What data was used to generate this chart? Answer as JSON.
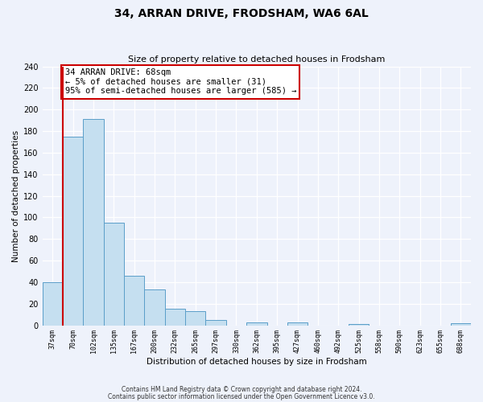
{
  "title": "34, ARRAN DRIVE, FRODSHAM, WA6 6AL",
  "subtitle": "Size of property relative to detached houses in Frodsham",
  "xlabel": "Distribution of detached houses by size in Frodsham",
  "ylabel": "Number of detached properties",
  "bin_labels": [
    "37sqm",
    "70sqm",
    "102sqm",
    "135sqm",
    "167sqm",
    "200sqm",
    "232sqm",
    "265sqm",
    "297sqm",
    "330sqm",
    "362sqm",
    "395sqm",
    "427sqm",
    "460sqm",
    "492sqm",
    "525sqm",
    "558sqm",
    "590sqm",
    "623sqm",
    "655sqm",
    "688sqm"
  ],
  "bar_heights": [
    40,
    175,
    191,
    95,
    46,
    33,
    15,
    13,
    5,
    0,
    3,
    0,
    3,
    0,
    0,
    1,
    0,
    0,
    0,
    0,
    2
  ],
  "bar_color": "#c5dff0",
  "bar_edge_color": "#5b9ec9",
  "vline_x": 0.5,
  "vline_color": "#cc0000",
  "annotation_text": "34 ARRAN DRIVE: 68sqm\n← 5% of detached houses are smaller (31)\n95% of semi-detached houses are larger (585) →",
  "annotation_box_color": "#ffffff",
  "annotation_box_edge": "#cc0000",
  "ylim": [
    0,
    240
  ],
  "yticks": [
    0,
    20,
    40,
    60,
    80,
    100,
    120,
    140,
    160,
    180,
    200,
    220,
    240
  ],
  "footer_line1": "Contains HM Land Registry data © Crown copyright and database right 2024.",
  "footer_line2": "Contains public sector information licensed under the Open Government Licence v3.0.",
  "background_color": "#eef2fb",
  "grid_color": "#ffffff",
  "title_fontsize": 10,
  "subtitle_fontsize": 8
}
